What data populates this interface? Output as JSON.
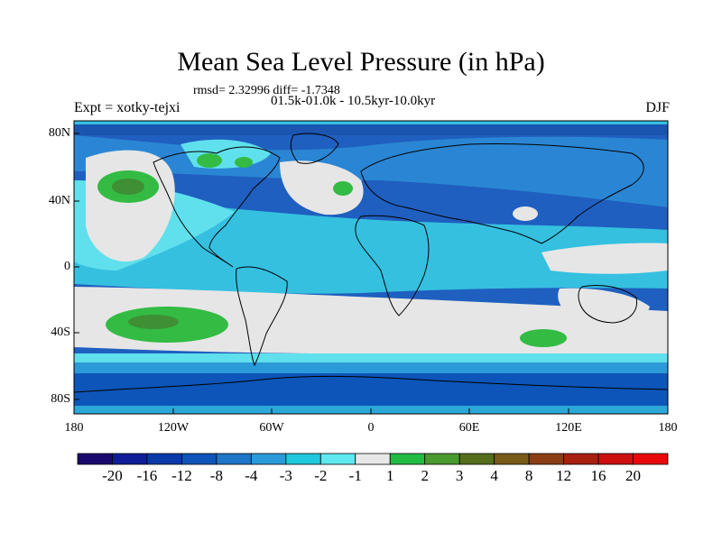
{
  "chart_data": {
    "type": "heatmap",
    "title": "Mean Sea Level Pressure (in hPa)",
    "subtitle_stats": "rmsd= 2.32996 diff= -1.7348",
    "subtitle_period": "01.5k-01.0k - 10.5kyr-10.0kyr",
    "experiment": "Expt = xotky-tejxi",
    "season": "DJF",
    "x_ticks": [
      "180",
      "120W",
      "60W",
      "0",
      "60E",
      "120E",
      "180"
    ],
    "y_ticks": [
      "80N",
      "40N",
      "0",
      "40S",
      "80S"
    ],
    "colorbar_labels": [
      "-20",
      "-16",
      "-12",
      "-8",
      "-4",
      "-3",
      "-2",
      "-1",
      "1",
      "2",
      "3",
      "4",
      "8",
      "12",
      "16",
      "20"
    ],
    "colorbar_colors": [
      "#1a0a6e",
      "#0f1e96",
      "#0a3aa8",
      "#0d55b8",
      "#1f75c8",
      "#2a9ad8",
      "#20c8de",
      "#5fe8ee",
      "#e8e8e8",
      "#22bb44",
      "#4a9a30",
      "#556e1c",
      "#7a5a18",
      "#8a3e16",
      "#a82010",
      "#cc1010",
      "#e80a0a"
    ]
  }
}
